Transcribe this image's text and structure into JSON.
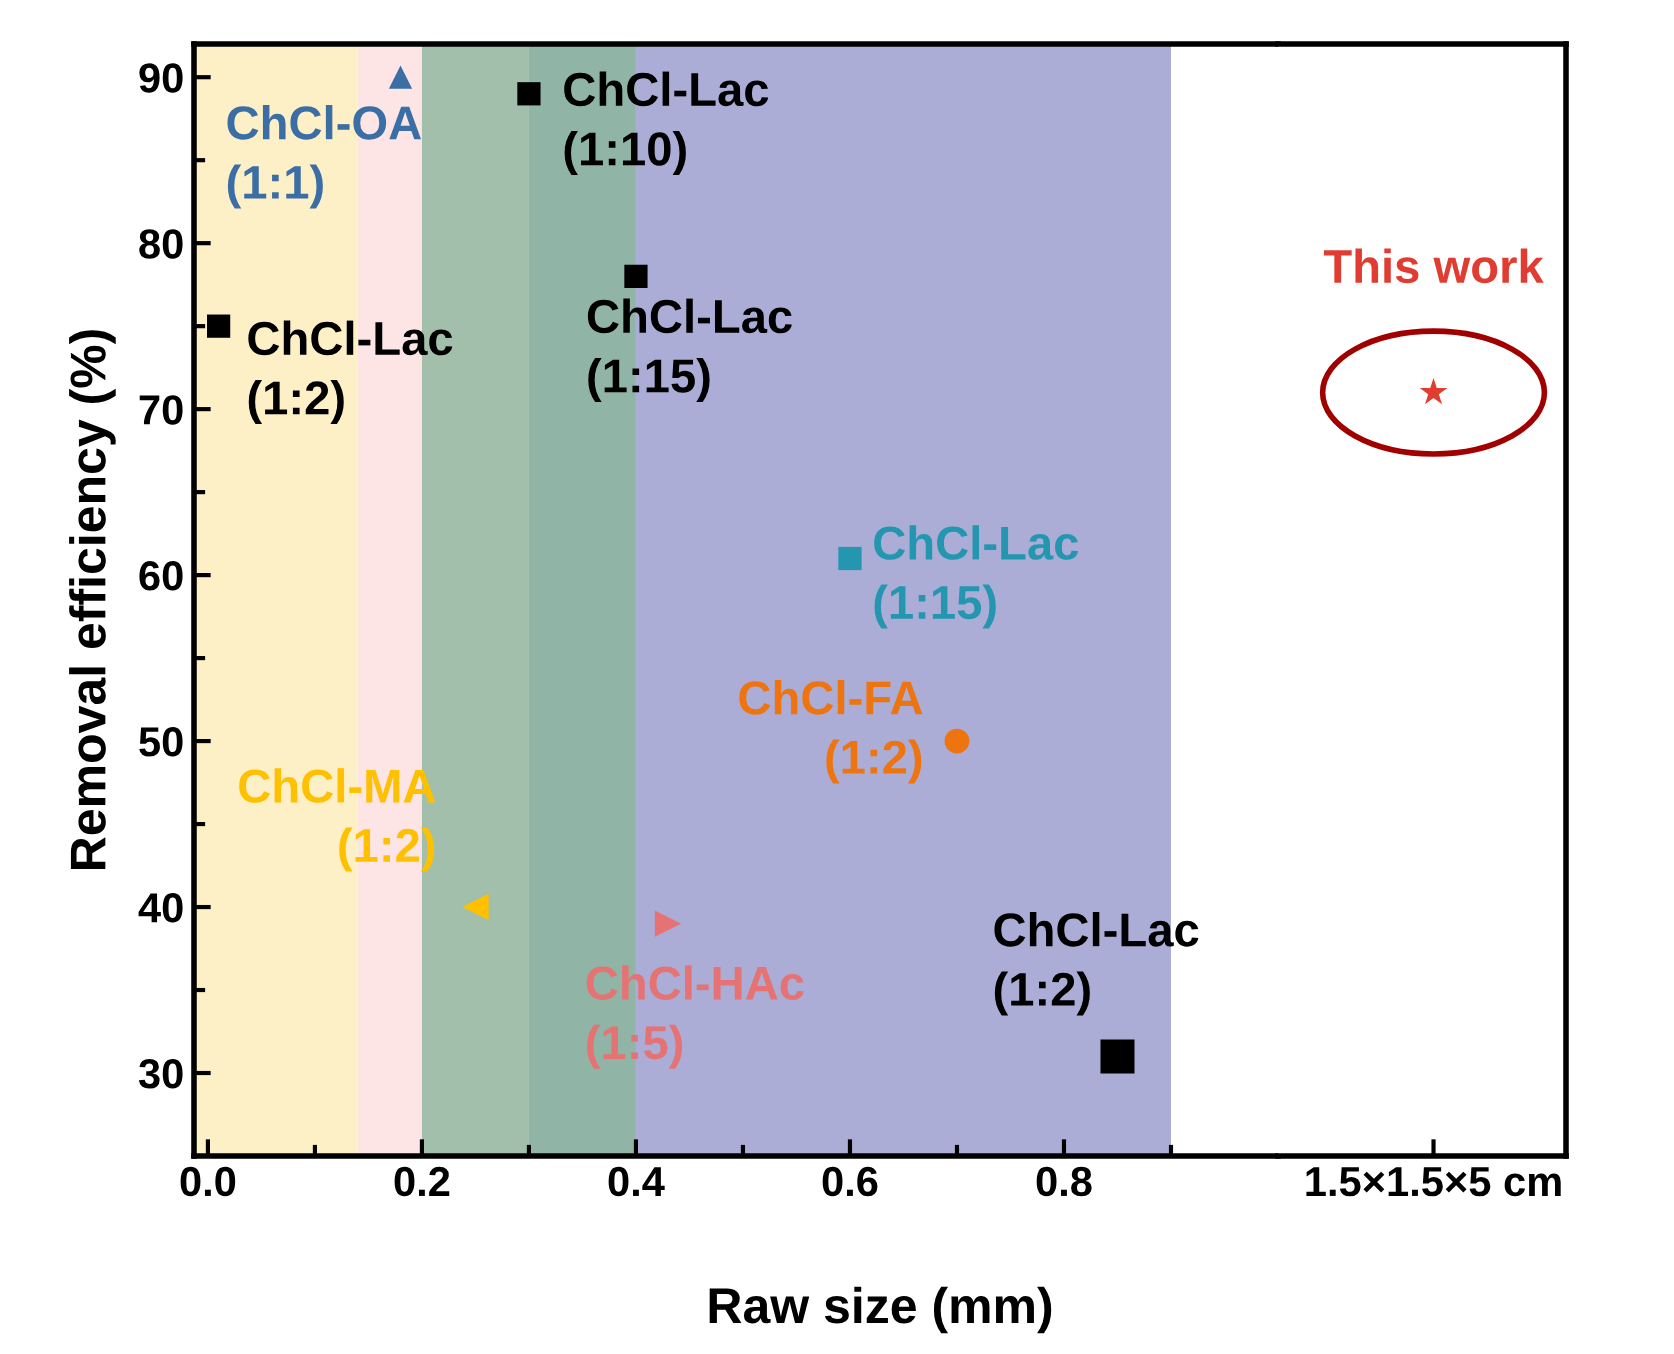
{
  "chart_data": [
    {
      "type": "scatter",
      "xlabel": "Raw size (mm)",
      "ylabel": "Removal efficiency (%)",
      "xlim": [
        -0.013,
        1.0
      ],
      "ylim": [
        25,
        92
      ],
      "xticks": [
        {
          "value": 0,
          "label": "0.0"
        },
        {
          "value": 0.2,
          "label": "0.2"
        },
        {
          "value": 0.4,
          "label": "0.4"
        },
        {
          "value": 0.6,
          "label": "0.6"
        },
        {
          "value": 0.8,
          "label": "0.8"
        }
      ],
      "yticks": [
        30,
        40,
        50,
        60,
        70,
        80,
        90
      ],
      "bands": [
        {
          "axis": "x",
          "from": -0.013,
          "to": 0.14,
          "color": "#fdefc6"
        },
        {
          "axis": "x",
          "from": 0.14,
          "to": 0.2,
          "color": "#fde5e5"
        },
        {
          "axis": "x",
          "from": 0.2,
          "to": 0.3,
          "color": "#a1bfab"
        },
        {
          "axis": "x",
          "from": 0.3,
          "to": 0.4,
          "color": "#90b5a7"
        },
        {
          "axis": "x",
          "from": 0.4,
          "to": 0.9,
          "color": "#abadd6"
        }
      ],
      "series": [
        {
          "name": "ChCl-Lac\n(1:2)",
          "color": "#000000",
          "marker": "square",
          "x": [
            0.01
          ],
          "values": [
            75
          ]
        },
        {
          "name": "ChCl-OA\n(1:1)",
          "color": "#3a6ea5",
          "marker": "triangle",
          "x": [
            0.18
          ],
          "values": [
            90
          ]
        },
        {
          "name": "ChCl-Lac\n(1:10)",
          "color": "#000000",
          "marker": "square",
          "x": [
            0.3
          ],
          "values": [
            89
          ]
        },
        {
          "name": "ChCl-Lac\n(1:15)",
          "color": "#000000",
          "marker": "square",
          "x": [
            0.4
          ],
          "values": [
            78
          ]
        },
        {
          "name": "ChCl-Lac\n(1:15)",
          "color": "#2596b0",
          "marker": "square",
          "x": [
            0.6
          ],
          "values": [
            61
          ]
        },
        {
          "name": "ChCl-FA\n(1:2)",
          "color": "#ee7410",
          "marker": "circle",
          "x": [
            0.7
          ],
          "values": [
            50
          ]
        },
        {
          "name": "ChCl-MA\n(1:2)",
          "color": "#ffc000",
          "marker": "triangle-left",
          "x": [
            0.25
          ],
          "values": [
            40
          ]
        },
        {
          "name": "ChCl-HAc\n(1:5)",
          "color": "#e57373",
          "marker": "triangle-right",
          "x": [
            0.43
          ],
          "values": [
            39
          ]
        },
        {
          "name": "ChCl-Lac\n(1:2)",
          "color": "#000000",
          "marker": "square",
          "x": [
            0.85
          ],
          "values": [
            31
          ]
        }
      ],
      "grid": false,
      "legend": false
    },
    {
      "type": "scatter",
      "categories": [
        "1.5×1.5×5 cm"
      ],
      "ylim": [
        25,
        92
      ],
      "tick_labels": "x",
      "series": [
        {
          "name": "This work",
          "color": "#e03c31",
          "marker": "star",
          "values": [
            71
          ]
        }
      ],
      "grid": false,
      "legend": false
    }
  ]
}
